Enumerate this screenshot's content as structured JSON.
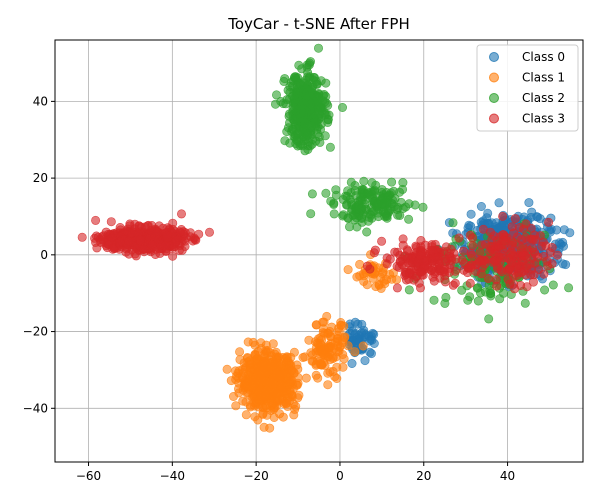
{
  "chart_data": {
    "type": "scatter",
    "title": "ToyCar - t-SNE After FPH",
    "xlabel": "",
    "ylabel": "",
    "xlim": [
      -68,
      58
    ],
    "ylim": [
      -54,
      56
    ],
    "xticks": [
      -60,
      -40,
      -20,
      0,
      20,
      40
    ],
    "yticks": [
      -40,
      -20,
      0,
      20,
      40
    ],
    "xtick_labels": [
      "−60",
      "−40",
      "−20",
      "0",
      "20",
      "40"
    ],
    "ytick_labels": [
      "−40",
      "−20",
      "0",
      "20",
      "40"
    ],
    "grid": true,
    "legend_position": "top-right",
    "marker_opacity": 0.6,
    "series": [
      {
        "name": "Class 0",
        "color": "#1f77b4",
        "clusters": [
          {
            "center": [
              40,
              2
            ],
            "spread": [
              8.5,
              6.5
            ],
            "count": 520
          },
          {
            "center": [
              5,
              -22
            ],
            "spread": [
              3.0,
              3.5
            ],
            "count": 55
          }
        ]
      },
      {
        "name": "Class 1",
        "color": "#ff7f0e",
        "clusters": [
          {
            "center": [
              -17,
              -33
            ],
            "spread": [
              5.5,
              6.0
            ],
            "count": 560
          },
          {
            "center": [
              -3,
              -25
            ],
            "spread": [
              4.0,
              6.0
            ],
            "count": 110
          },
          {
            "center": [
              8,
              -5
            ],
            "spread": [
              4.0,
              3.0
            ],
            "count": 40
          }
        ]
      },
      {
        "name": "Class 2",
        "color": "#2ca02c",
        "clusters": [
          {
            "center": [
              -8,
              38
            ],
            "spread": [
              4.0,
              8.0
            ],
            "count": 360
          },
          {
            "center": [
              8,
              13
            ],
            "spread": [
              8.0,
              4.0
            ],
            "count": 160
          },
          {
            "center": [
              35,
              -3
            ],
            "spread": [
              12.0,
              8.0
            ],
            "count": 120
          }
        ]
      },
      {
        "name": "Class 3",
        "color": "#d62728",
        "clusters": [
          {
            "center": [
              -47,
              4
            ],
            "spread": [
              8.0,
              2.6
            ],
            "count": 500
          },
          {
            "center": [
              20,
              -2
            ],
            "spread": [
              8.0,
              4.0
            ],
            "count": 180
          },
          {
            "center": [
              40,
              0
            ],
            "spread": [
              8.0,
              6.5
            ],
            "count": 160
          }
        ]
      }
    ]
  }
}
